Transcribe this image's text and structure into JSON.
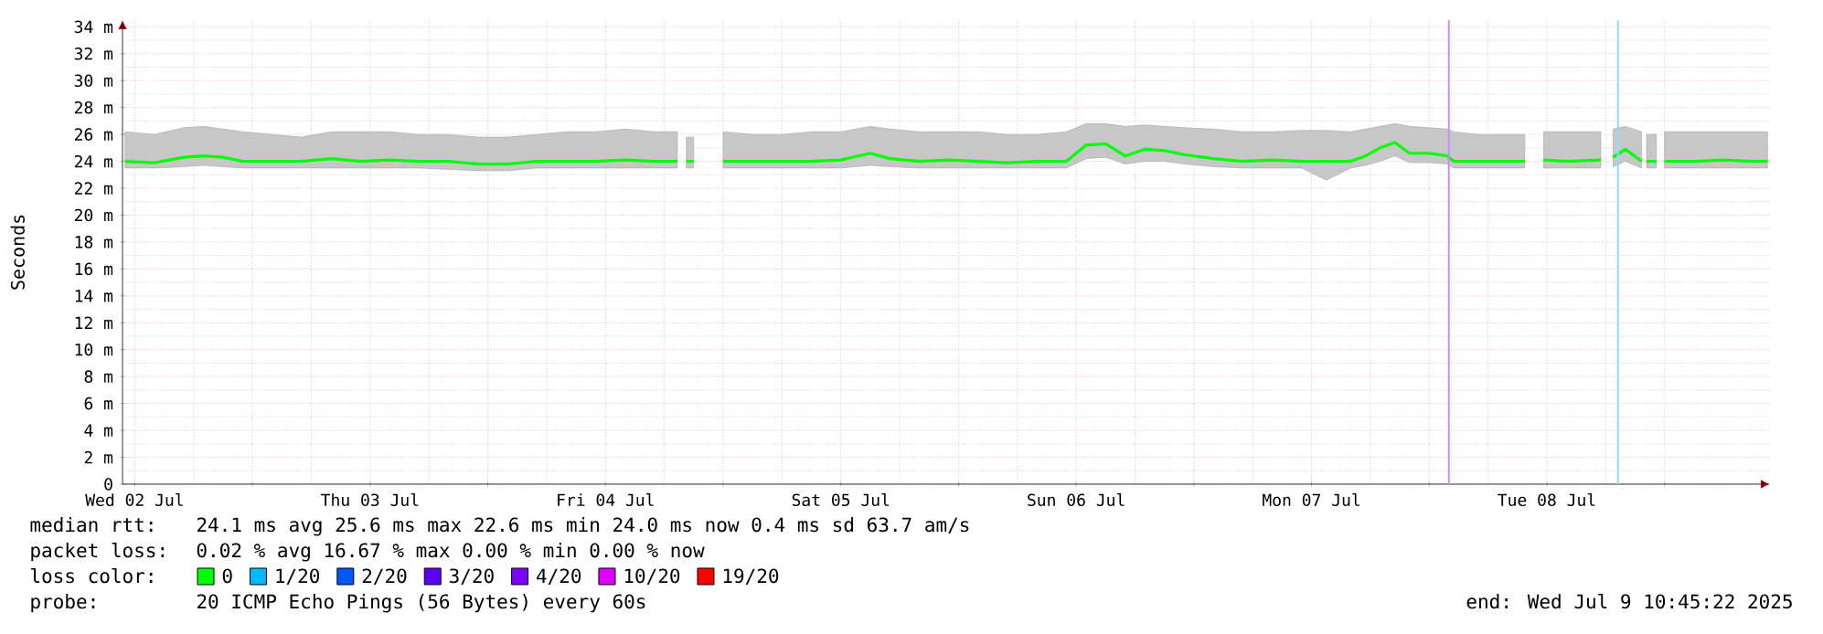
{
  "chart_data": {
    "type": "line",
    "ylabel": "Seconds",
    "legend_title": "loss color:",
    "legend": "bottom",
    "grid": true,
    "xlim": [
      "2025-07-02T10:45",
      "2025-07-09T10:45"
    ],
    "ylim": [
      0,
      34.5
    ],
    "xticks": [
      {
        "value": "2025-07-02T12:00",
        "label": "Wed 02 Jul"
      },
      {
        "value": "2025-07-03T00:00",
        "label": null
      },
      {
        "value": "2025-07-03T12:00",
        "label": "Thu 03 Jul"
      },
      {
        "value": "2025-07-04T00:00",
        "label": null
      },
      {
        "value": "2025-07-04T12:00",
        "label": "Fri 04 Jul"
      },
      {
        "value": "2025-07-05T00:00",
        "label": null
      },
      {
        "value": "2025-07-05T12:00",
        "label": "Sat 05 Jul"
      },
      {
        "value": "2025-07-06T00:00",
        "label": null
      },
      {
        "value": "2025-07-06T12:00",
        "label": "Sun 06 Jul"
      },
      {
        "value": "2025-07-07T00:00",
        "label": null
      },
      {
        "value": "2025-07-07T12:00",
        "label": "Mon 07 Jul"
      },
      {
        "value": "2025-07-08T00:00",
        "label": null
      },
      {
        "value": "2025-07-08T12:00",
        "label": "Tue 08 Jul"
      },
      {
        "value": "2025-07-09T00:00",
        "label": null
      }
    ],
    "yticks": [
      0,
      {
        "value": 2,
        "label": "2 m"
      },
      {
        "value": 4,
        "label": "4 m"
      },
      {
        "value": 6,
        "label": "6 m"
      },
      {
        "value": 8,
        "label": "8 m"
      },
      {
        "value": 10,
        "label": "10 m"
      },
      {
        "value": 12,
        "label": "12 m"
      },
      {
        "value": 14,
        "label": "14 m"
      },
      {
        "value": 16,
        "label": "16 m"
      },
      {
        "value": 18,
        "label": "18 m"
      },
      {
        "value": 20,
        "label": "20 m"
      },
      {
        "value": 22,
        "label": "22 m"
      },
      {
        "value": 24,
        "label": "24 m"
      },
      {
        "value": 26,
        "label": "26 m"
      },
      {
        "value": 28,
        "label": "28 m"
      },
      {
        "value": 30,
        "label": "30 m"
      },
      {
        "value": 32,
        "label": "32 m"
      },
      {
        "value": 34,
        "label": "34 m"
      }
    ],
    "series": [
      {
        "name": "0",
        "color": "#00ff00",
        "x": [
          "2025-07-02T11:00",
          "2025-07-02T14:00",
          "2025-07-02T17:00",
          "2025-07-02T19:00",
          "2025-07-02T21:00",
          "2025-07-02T23:00",
          "2025-07-03T02:00",
          "2025-07-03T05:00",
          "2025-07-03T08:00",
          "2025-07-03T11:00",
          "2025-07-03T14:00",
          "2025-07-03T17:00",
          "2025-07-03T20:00",
          "2025-07-03T23:00",
          "2025-07-04T02:00",
          "2025-07-04T05:00",
          "2025-07-04T08:00",
          "2025-07-04T11:00",
          "2025-07-04T14:00",
          "2025-07-04T17:00",
          "2025-07-04T19:20",
          "2025-07-04T19:45",
          "2025-07-04T20:15",
          "2025-07-04T21:00",
          "2025-07-04T22:00",
          "2025-07-05T00:00",
          "2025-07-05T03:00",
          "2025-07-05T06:00",
          "2025-07-05T09:00",
          "2025-07-05T12:00",
          "2025-07-05T15:00",
          "2025-07-05T17:00",
          "2025-07-05T20:00",
          "2025-07-05T23:00",
          "2025-07-06T02:00",
          "2025-07-06T05:00",
          "2025-07-06T08:00",
          "2025-07-06T11:00",
          "2025-07-06T13:00",
          "2025-07-06T15:00",
          "2025-07-06T17:00",
          "2025-07-06T19:00",
          "2025-07-06T21:00",
          "2025-07-06T23:00",
          "2025-07-07T02:00",
          "2025-07-07T05:00",
          "2025-07-07T08:00",
          "2025-07-07T11:00",
          "2025-07-07T13:30",
          "2025-07-07T16:00",
          "2025-07-07T17:30",
          "2025-07-07T19:00",
          "2025-07-07T20:30",
          "2025-07-07T22:00",
          "2025-07-08T00:00",
          "2025-07-08T01:50",
          "2025-07-08T02:30",
          "2025-07-08T05:00",
          "2025-07-08T08:00",
          "2025-07-08T09:45",
          "2025-07-08T10:30",
          "2025-07-08T11:40",
          "2025-07-08T14:00",
          "2025-07-08T17:30",
          "2025-07-08T18:00",
          "2025-07-08T18:45",
          "2025-07-08T20:00",
          "2025-07-08T21:40",
          "2025-07-08T21:55",
          "2025-07-08T22:10",
          "2025-07-08T23:10",
          "2025-07-08T23:25",
          "2025-07-09T00:00",
          "2025-07-09T03:00",
          "2025-07-09T06:00",
          "2025-07-09T09:00",
          "2025-07-09T10:30"
        ],
        "values": [
          24.0,
          23.9,
          24.3,
          24.4,
          24.3,
          24.0,
          24.0,
          24.0,
          24.2,
          24.0,
          24.1,
          24.0,
          24.0,
          23.8,
          23.8,
          24.0,
          24.0,
          24.0,
          24.1,
          24.0,
          24.0,
          null,
          24.0,
          24.0,
          null,
          24.0,
          24.0,
          24.0,
          24.0,
          24.1,
          24.6,
          24.2,
          24.0,
          24.1,
          24.0,
          23.9,
          24.0,
          24.0,
          25.2,
          25.3,
          24.4,
          24.9,
          24.8,
          24.5,
          24.2,
          24.0,
          24.1,
          24.0,
          24.0,
          24.0,
          24.4,
          25.0,
          25.4,
          24.6,
          24.6,
          24.4,
          24.0,
          24.0,
          24.0,
          24.0,
          null,
          24.1,
          24.0,
          24.1,
          null,
          24.3,
          24.9,
          24.0,
          null,
          24.0,
          24.0,
          null,
          24.0,
          24.0,
          24.1,
          24.0,
          24.0
        ],
        "lower": [
          23.5,
          23.5,
          23.6,
          23.7,
          23.6,
          23.5,
          23.5,
          23.5,
          23.5,
          23.5,
          23.5,
          23.5,
          23.4,
          23.3,
          23.3,
          23.5,
          23.5,
          23.5,
          23.5,
          23.5,
          23.5,
          null,
          23.5,
          23.5,
          null,
          23.5,
          23.5,
          23.5,
          23.5,
          23.5,
          23.7,
          23.6,
          23.5,
          23.5,
          23.5,
          23.5,
          23.5,
          23.5,
          24.2,
          24.3,
          23.8,
          24.0,
          24.0,
          23.8,
          23.6,
          23.5,
          23.5,
          23.5,
          22.6,
          23.5,
          23.7,
          24.0,
          24.4,
          23.9,
          23.9,
          23.8,
          23.5,
          23.5,
          23.5,
          23.5,
          null,
          23.5,
          23.5,
          23.5,
          null,
          23.6,
          24.0,
          23.5,
          null,
          23.5,
          23.5,
          null,
          23.5,
          23.5,
          23.5,
          23.5,
          23.5
        ],
        "upper": [
          26.2,
          26.0,
          26.5,
          26.6,
          26.4,
          26.2,
          26.0,
          25.8,
          26.2,
          26.2,
          26.2,
          26.0,
          26.0,
          25.8,
          25.8,
          26.0,
          26.2,
          26.2,
          26.4,
          26.2,
          26.2,
          null,
          25.8,
          25.8,
          null,
          26.2,
          26.0,
          26.0,
          26.2,
          26.2,
          26.6,
          26.4,
          26.2,
          26.2,
          26.2,
          26.0,
          26.0,
          26.2,
          26.8,
          26.8,
          26.6,
          26.7,
          26.6,
          26.5,
          26.4,
          26.2,
          26.2,
          26.3,
          26.3,
          26.2,
          26.4,
          26.6,
          26.8,
          26.6,
          26.5,
          26.4,
          26.2,
          26.0,
          26.0,
          26.0,
          null,
          26.2,
          26.2,
          26.2,
          null,
          26.4,
          26.6,
          26.2,
          null,
          26.0,
          26.0,
          null,
          26.2,
          26.2,
          26.2,
          26.2,
          26.2
        ]
      },
      {
        "name": "1/20",
        "color": "#00b8ff"
      },
      {
        "name": "2/20",
        "color": "#0059ff"
      },
      {
        "name": "3/20",
        "color": "#5e00ff"
      },
      {
        "name": "4/20",
        "color": "#7e00ff"
      },
      {
        "name": "10/20",
        "color": "#dd00ff"
      },
      {
        "name": "19/20",
        "color": "#ff0000"
      }
    ],
    "ref_lines": [
      {
        "axis": "x",
        "value": "2025-07-08T02:00",
        "color": "#cc88ff"
      },
      {
        "axis": "x",
        "value": "2025-07-08T19:15",
        "color": "#88ddff"
      }
    ],
    "annotations": [
      "median rtt:",
      "24.1 ms avg 25.6 ms max 22.6 ms min 24.0 ms now 0.4 ms sd 63.7 am/s",
      "packet loss:",
      "0.02 % avg 16.67 % max 0.00 % min 0.00 % now",
      "probe:",
      "20 ICMP Echo Pings (56 Bytes) every 60s",
      "end: Wed Jul 9 10:45:22 2025"
    ]
  }
}
